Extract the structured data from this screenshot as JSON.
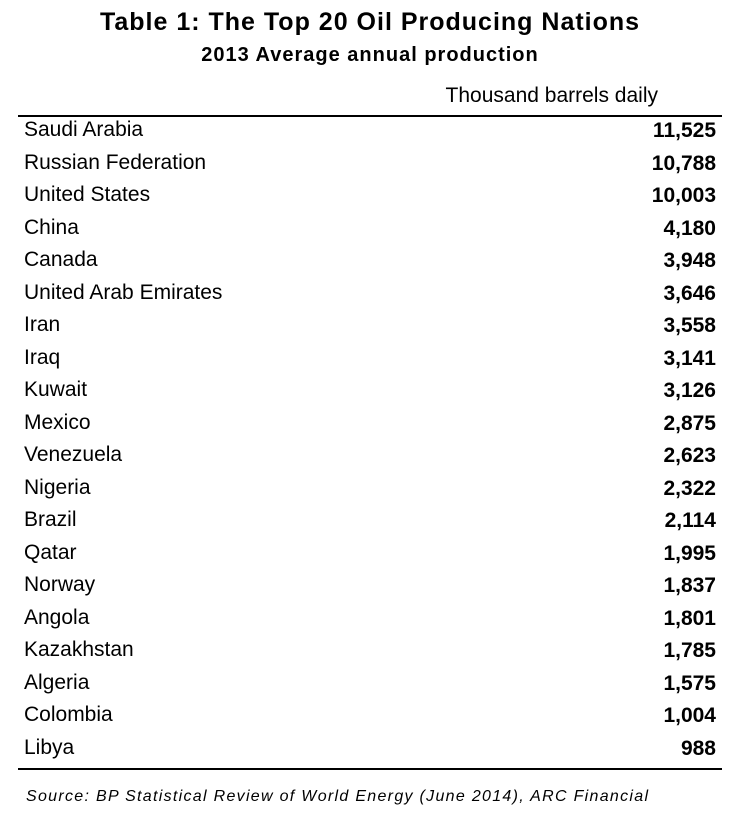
{
  "title": "Table 1: The Top 20 Oil Producing Nations",
  "subtitle": "2013 Average annual production",
  "unit_label": "Thousand barrels daily",
  "rows": [
    {
      "country": "Saudi Arabia",
      "value": "11,525"
    },
    {
      "country": "Russian Federation",
      "value": "10,788"
    },
    {
      "country": "United States",
      "value": "10,003"
    },
    {
      "country": "China",
      "value": "4,180"
    },
    {
      "country": "Canada",
      "value": "3,948"
    },
    {
      "country": "United Arab Emirates",
      "value": "3,646"
    },
    {
      "country": "Iran",
      "value": "3,558"
    },
    {
      "country": "Iraq",
      "value": "3,141"
    },
    {
      "country": "Kuwait",
      "value": "3,126"
    },
    {
      "country": "Mexico",
      "value": "2,875"
    },
    {
      "country": "Venezuela",
      "value": "2,623"
    },
    {
      "country": "Nigeria",
      "value": "2,322"
    },
    {
      "country": "Brazil",
      "value": "2,114"
    },
    {
      "country": "Qatar",
      "value": "1,995"
    },
    {
      "country": "Norway",
      "value": "1,837"
    },
    {
      "country": "Angola",
      "value": "1,801"
    },
    {
      "country": "Kazakhstan",
      "value": "1,785"
    },
    {
      "country": "Algeria",
      "value": "1,575"
    },
    {
      "country": "Colombia",
      "value": "1,004"
    },
    {
      "country": "Libya",
      "value": "988"
    }
  ],
  "source": "Source: BP Statistical Review of World Energy (June 2014), ARC Financial"
}
